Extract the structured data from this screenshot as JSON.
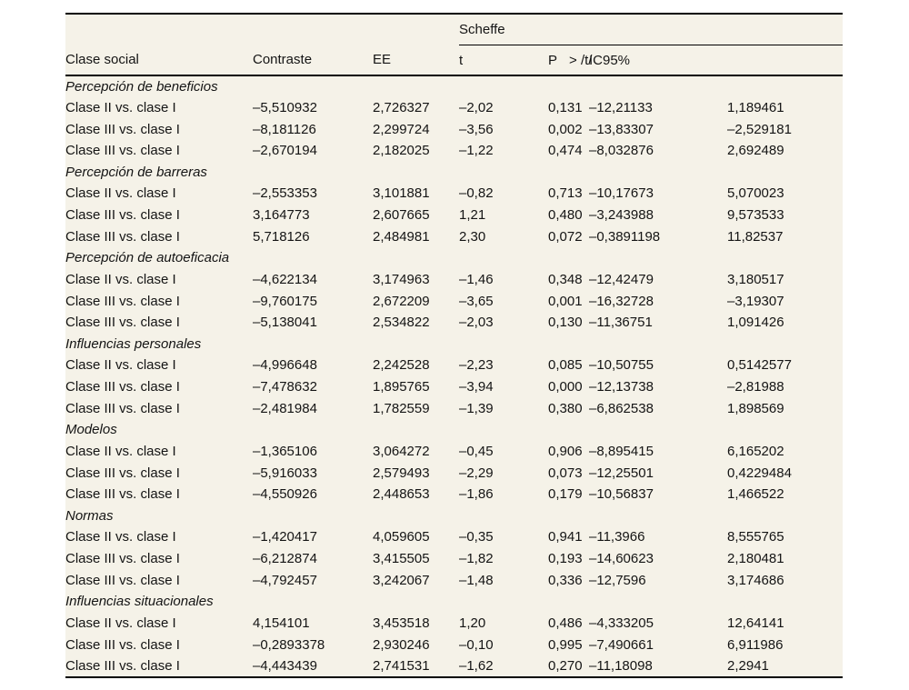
{
  "table": {
    "colors": {
      "band_background": "#f5f2e8",
      "rule": "#000000",
      "text": "#141414"
    },
    "header": {
      "group_label": "Scheffe",
      "col_clase": "Clase social",
      "col_contraste": "Contraste",
      "col_ee": "EE",
      "col_t": "t",
      "col_p": "P",
      "col_p_suffix": "> /t/",
      "col_ic": "IC95%"
    },
    "sections": [
      {
        "title": "Percepción de beneficios",
        "rows": [
          {
            "label": "Clase II vs. clase I",
            "contraste": "–5,510932",
            "ee": "2,726327",
            "t": "–2,02",
            "p": "0,131",
            "ic_low": "–12,21133",
            "ic_high": "1,189461"
          },
          {
            "label": "Clase III vs. clase I",
            "contraste": "–8,181126",
            "ee": "2,299724",
            "t": "–3,56",
            "p": "0,002",
            "ic_low": "–13,83307",
            "ic_high": "–2,529181"
          },
          {
            "label": "Clase III vs. clase I",
            "contraste": "–2,670194",
            "ee": "2,182025",
            "t": "–1,22",
            "p": "0,474",
            "ic_low": "–8,032876",
            "ic_high": "2,692489"
          }
        ]
      },
      {
        "title": "Percepción de barreras",
        "rows": [
          {
            "label": "Clase II vs. clase I",
            "contraste": "–2,553353",
            "ee": "3,101881",
            "t": "–0,82",
            "p": "0,713",
            "ic_low": "–10,17673",
            "ic_high": "5,070023"
          },
          {
            "label": "Clase III vs. clase I",
            "contraste": "3,164773",
            "ee": "2,607665",
            "t": "1,21",
            "p": "0,480",
            "ic_low": "–3,243988",
            "ic_high": "9,573533"
          },
          {
            "label": "Clase III vs. clase I",
            "contraste": "5,718126",
            "ee": "2,484981",
            "t": "2,30",
            "p": "0,072",
            "ic_low": "–0,3891198",
            "ic_high": "11,82537"
          }
        ]
      },
      {
        "title": "Percepción de autoeficacia",
        "rows": [
          {
            "label": "Clase II vs. clase I",
            "contraste": "–4,622134",
            "ee": "3,174963",
            "t": "–1,46",
            "p": "0,348",
            "ic_low": "–12,42479",
            "ic_high": "3,180517"
          },
          {
            "label": "Clase III vs. clase I",
            "contraste": "–9,760175",
            "ee": "2,672209",
            "t": "–3,65",
            "p": "0,001",
            "ic_low": "–16,32728",
            "ic_high": "–3,19307"
          },
          {
            "label": "Clase III vs. clase I",
            "contraste": "–5,138041",
            "ee": "2,534822",
            "t": "–2,03",
            "p": "0,130",
            "ic_low": "–11,36751",
            "ic_high": "1,091426"
          }
        ]
      },
      {
        "title": "Influencias personales",
        "rows": [
          {
            "label": "Clase II vs. clase I",
            "contraste": "–4,996648",
            "ee": "2,242528",
            "t": "–2,23",
            "p": "0,085",
            "ic_low": "–10,50755",
            "ic_high": "0,5142577"
          },
          {
            "label": "Clase III vs. clase I",
            "contraste": "–7,478632",
            "ee": "1,895765",
            "t": "–3,94",
            "p": "0,000",
            "ic_low": "–12,13738",
            "ic_high": "–2,81988"
          },
          {
            "label": "Clase III vs. clase I",
            "contraste": "–2,481984",
            "ee": "1,782559",
            "t": "–1,39",
            "p": "0,380",
            "ic_low": "–6,862538",
            "ic_high": "1,898569"
          }
        ]
      },
      {
        "title": "Modelos",
        "rows": [
          {
            "label": "Clase II vs. clase I",
            "contraste": "–1,365106",
            "ee": "3,064272",
            "t": "–0,45",
            "p": "0,906",
            "ic_low": "–8,895415",
            "ic_high": "6,165202"
          },
          {
            "label": "Clase III vs. clase I",
            "contraste": "–5,916033",
            "ee": "2,579493",
            "t": "–2,29",
            "p": "0,073",
            "ic_low": "–12,25501",
            "ic_high": "0,4229484"
          },
          {
            "label": "Clase III vs. clase I",
            "contraste": "–4,550926",
            "ee": "2,448653",
            "t": "–1,86",
            "p": "0,179",
            "ic_low": "–10,56837",
            "ic_high": "1,466522"
          }
        ]
      },
      {
        "title": "Normas",
        "rows": [
          {
            "label": "Clase II vs. clase I",
            "contraste": "–1,420417",
            "ee": "4,059605",
            "t": "–0,35",
            "p": "0,941",
            "ic_low": "–11,3966",
            "ic_high": "8,555765"
          },
          {
            "label": "Clase III vs. clase I",
            "contraste": "–6,212874",
            "ee": "3,415505",
            "t": "–1,82",
            "p": "0,193",
            "ic_low": "–14,60623",
            "ic_high": "2,180481"
          },
          {
            "label": "Clase III vs. clase I",
            "contraste": "–4,792457",
            "ee": "3,242067",
            "t": "–1,48",
            "p": "0,336",
            "ic_low": "–12,7596",
            "ic_high": "3,174686"
          }
        ]
      },
      {
        "title": "Influencias situacionales",
        "rows": [
          {
            "label": "Clase II vs. clase I",
            "contraste": "4,154101",
            "ee": "3,453518",
            "t": "1,20",
            "p": "0,486",
            "ic_low": "–4,333205",
            "ic_high": "12,64141"
          },
          {
            "label": "Clase III vs. clase I",
            "contraste": "–0,2893378",
            "ee": "2,930246",
            "t": "–0,10",
            "p": "0,995",
            "ic_low": "–7,490661",
            "ic_high": "6,911986"
          },
          {
            "label": "Clase III vs. clase I",
            "contraste": "–4,443439",
            "ee": "2,741531",
            "t": "–1,62",
            "p": "0,270",
            "ic_low": "–11,18098",
            "ic_high": "2,2941"
          }
        ]
      }
    ]
  }
}
